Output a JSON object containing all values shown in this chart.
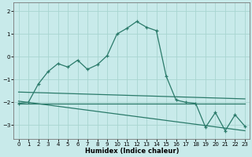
{
  "xlabel": "Humidex (Indice chaleur)",
  "background_color": "#c8eaea",
  "grid_color": "#a8d5d0",
  "line_color": "#2a7a6a",
  "xlim": [
    -0.5,
    23.5
  ],
  "ylim": [
    -3.6,
    2.4
  ],
  "yticks": [
    -3,
    -2,
    -1,
    0,
    1,
    2
  ],
  "xticks": [
    0,
    1,
    2,
    3,
    4,
    5,
    6,
    7,
    8,
    9,
    10,
    11,
    12,
    13,
    14,
    15,
    16,
    17,
    18,
    19,
    20,
    21,
    22,
    23
  ],
  "main_x": [
    0,
    1,
    2,
    3,
    4,
    5,
    6,
    7,
    8,
    9,
    10,
    11,
    12,
    13,
    14,
    15,
    16,
    17,
    18,
    19,
    20,
    21,
    22,
    23
  ],
  "main_y": [
    -2.05,
    -2.0,
    -1.2,
    -0.65,
    -0.3,
    -0.45,
    -0.15,
    -0.55,
    -0.35,
    0.05,
    1.0,
    1.25,
    1.55,
    1.3,
    1.15,
    -0.85,
    -1.9,
    -2.0,
    -2.05,
    -3.1,
    -2.45,
    -3.25,
    -2.55,
    -3.05
  ],
  "line1_x": [
    0,
    23
  ],
  "line1_y": [
    -2.05,
    -2.05
  ],
  "line2_x": [
    0,
    23
  ],
  "line2_y": [
    -1.55,
    -1.85
  ],
  "line3_x": [
    0,
    23
  ],
  "line3_y": [
    -1.95,
    -3.25
  ]
}
